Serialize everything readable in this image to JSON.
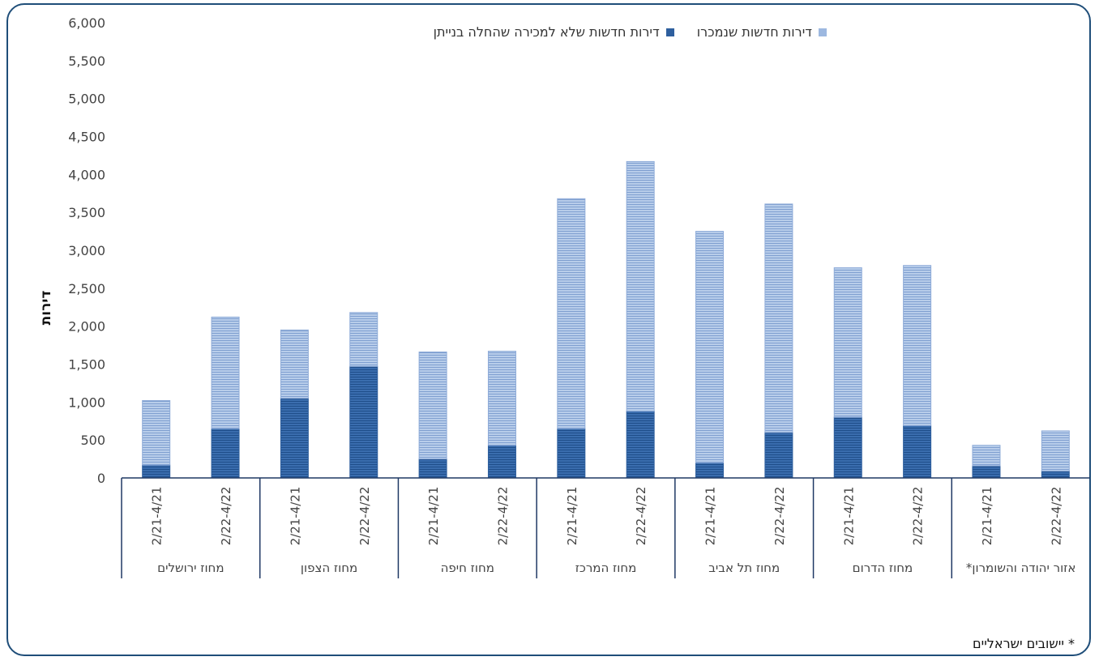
{
  "chart_data": {
    "type": "bar",
    "stacked": true,
    "ylabel": "דירות",
    "ylim": [
      0,
      6000
    ],
    "yticks": [
      "0",
      "500",
      "1,000",
      "1,500",
      "2,000",
      "2,500",
      "3,000",
      "3,500",
      "4,000",
      "4,500",
      "5,000",
      "5,500",
      "6,000"
    ],
    "ytick_values": [
      0,
      500,
      1000,
      1500,
      2000,
      2500,
      3000,
      3500,
      4000,
      4500,
      5000,
      5500,
      6000
    ],
    "groups": [
      "מחוז ירושלים",
      "מחוז הצפון",
      "מחוז חיפה",
      "מחוז המרכז",
      "מחוז תל אביב",
      "מחוז הדרום",
      "אזור יהודה והשומרון*"
    ],
    "periods": [
      "2/21-4/21",
      "2/22-4/22"
    ],
    "series": [
      {
        "name": "דירות חדשות שלא למכירה שהחלה בנייתן",
        "color": "#2e5f9e",
        "values": [
          170,
          650,
          1050,
          1470,
          250,
          430,
          650,
          880,
          200,
          600,
          800,
          690,
          160,
          90
        ]
      },
      {
        "name": "דירות חדשות שנמכרו",
        "color": "#9db8e0",
        "values": [
          850,
          1470,
          900,
          710,
          1410,
          1240,
          3030,
          3290,
          3050,
          3010,
          1970,
          2110,
          270,
          530
        ]
      }
    ],
    "legend_position": "top"
  },
  "footnote": "* יישובים ישראליים"
}
